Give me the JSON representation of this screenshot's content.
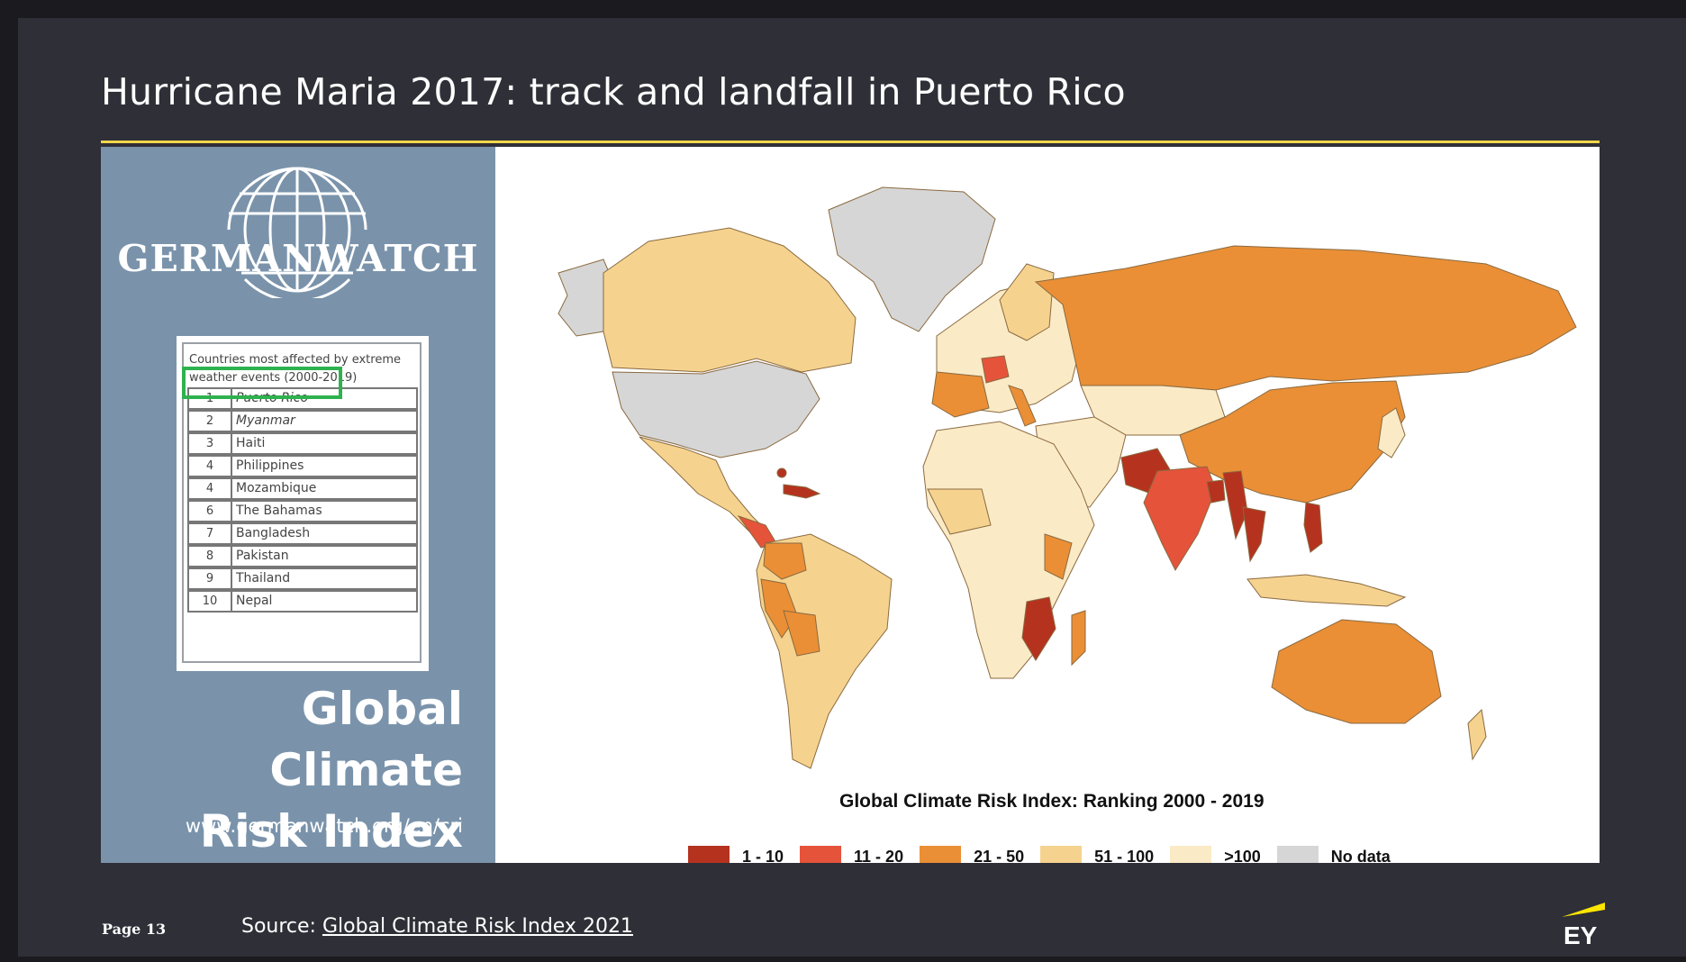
{
  "slide": {
    "title": "Hurricane Maria 2017: track and landfall in Puerto Rico",
    "page_label": "Page 13",
    "source_prefix": "Source: ",
    "source_link": "Global Climate Risk Index 2021",
    "logo_text": "EY"
  },
  "germanwatch": {
    "brand": "GERMANWATCH",
    "table_title": "Countries most affected by extreme weather events (2000-2019)",
    "rankings": [
      {
        "rank": "1",
        "country": "Puerto Rico"
      },
      {
        "rank": "2",
        "country": "Myanmar"
      },
      {
        "rank": "3",
        "country": "Haiti"
      },
      {
        "rank": "4",
        "country": "Philippines"
      },
      {
        "rank": "4",
        "country": "Mozambique"
      },
      {
        "rank": "6",
        "country": "The Bahamas"
      },
      {
        "rank": "7",
        "country": "Bangladesh"
      },
      {
        "rank": "8",
        "country": "Pakistan"
      },
      {
        "rank": "9",
        "country": "Thailand"
      },
      {
        "rank": "10",
        "country": "Nepal"
      }
    ],
    "highlighted_rank": "1",
    "index_title_line1": "Global Climate",
    "index_title_line2": "Risk Index",
    "url": "www.germanwatch.org/en/cri"
  },
  "map": {
    "title": "Global Climate Risk Index: Ranking 2000 - 2019",
    "legend": [
      {
        "label": "1 - 10",
        "color": "#b5321f"
      },
      {
        "label": "11 - 20",
        "color": "#e5533a"
      },
      {
        "label": "21 - 50",
        "color": "#ea8f36"
      },
      {
        "label": "51 - 100",
        "color": "#f5d38f"
      },
      {
        "label": ">100",
        "color": "#fbeac6"
      },
      {
        "label": "No data",
        "color": "#d6d6d6"
      }
    ]
  },
  "colors": {
    "background": "#2f2f37",
    "accent_rule": "#f1d54a",
    "panel_blue": "#7a93ab",
    "highlight_green": "#2eb24f",
    "ey_yellow": "#ffe600"
  }
}
